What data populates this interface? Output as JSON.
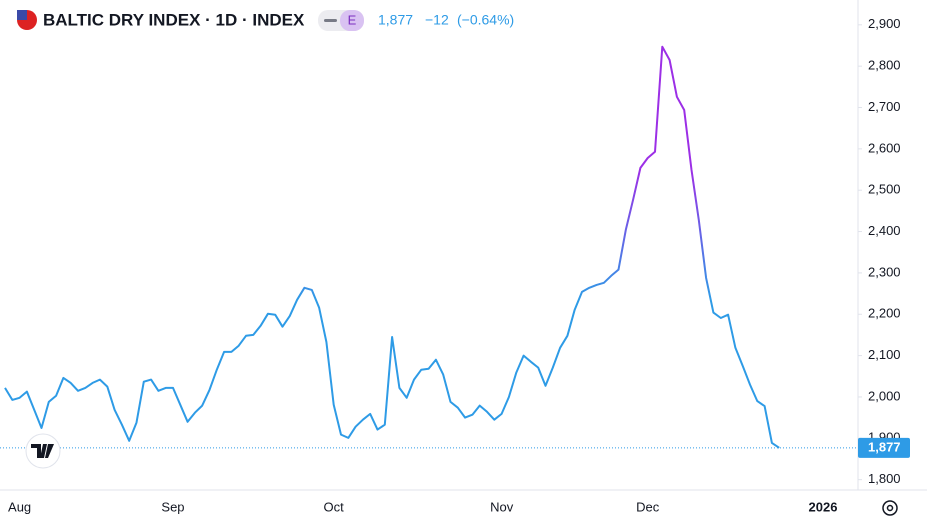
{
  "chart_data": {
    "type": "line",
    "title": "BALTIC DRY INDEX · 1D · INDEX",
    "badge": "E",
    "last_price": "1,877",
    "change": "−12",
    "change_percent": "(−0.64%)",
    "categories": [
      null,
      null,
      "Aug",
      null,
      null,
      null,
      null,
      null,
      null,
      null,
      null,
      null,
      null,
      null,
      null,
      null,
      null,
      null,
      null,
      null,
      null,
      null,
      null,
      "Sep",
      null,
      null,
      null,
      null,
      null,
      null,
      null,
      null,
      null,
      null,
      null,
      null,
      null,
      null,
      null,
      null,
      null,
      null,
      null,
      null,
      null,
      "Oct",
      null,
      null,
      null,
      null,
      null,
      null,
      null,
      null,
      null,
      null,
      null,
      null,
      null,
      null,
      null,
      null,
      null,
      null,
      null,
      null,
      null,
      null,
      "Nov",
      null,
      null,
      null,
      null,
      null,
      null,
      null,
      null,
      null,
      null,
      null,
      null,
      null,
      null,
      null,
      null,
      null,
      null,
      null,
      "Dec",
      null,
      null,
      null,
      null,
      null,
      null,
      null,
      null,
      null,
      null,
      null,
      null,
      null,
      null,
      null,
      null,
      null,
      null,
      null,
      null,
      null,
      null,
      null,
      "2026"
    ],
    "values": [
      2022,
      1993,
      1998,
      2013,
      1969,
      1925,
      1988,
      2003,
      2046,
      2034,
      2015,
      2022,
      2034,
      2042,
      2025,
      1969,
      1933,
      1894,
      1938,
      2037,
      2042,
      2015,
      2022,
      2022,
      1981,
      1940,
      1962,
      1979,
      2017,
      2066,
      2109,
      2109,
      2124,
      2148,
      2150,
      2172,
      2201,
      2199,
      2170,
      2196,
      2235,
      2264,
      2259,
      2216,
      2133,
      1981,
      1909,
      1901,
      1928,
      1945,
      1959,
      1921,
      1933,
      2145,
      2022,
      1998,
      2042,
      2066,
      2068,
      2090,
      2054,
      1988,
      1974,
      1950,
      1957,
      1979,
      1964,
      1945,
      1959,
      2000,
      2059,
      2100,
      2085,
      2071,
      2027,
      2071,
      2119,
      2148,
      2211,
      2254,
      2264,
      2271,
      2276,
      2293,
      2308,
      2404,
      2477,
      2554,
      2578,
      2593,
      2847,
      2815,
      2726,
      2694,
      2549,
      2428,
      2288,
      2204,
      2191,
      2199,
      2119,
      2075,
      2030,
      1990,
      1978,
      1889,
      1877,
      null,
      null,
      null,
      null,
      null,
      null
    ],
    "color": "#2e9be6",
    "high_color": "#9c2fe6",
    "ylim": [
      1775,
      2960
    ],
    "yticks": [
      {
        "value": 1800,
        "label": "1,800"
      },
      {
        "value": 1900,
        "label": "1,900"
      },
      {
        "value": 2000,
        "label": "2,000"
      },
      {
        "value": 2100,
        "label": "2,100"
      },
      {
        "value": 2200,
        "label": "2,200"
      },
      {
        "value": 2300,
        "label": "2,300"
      },
      {
        "value": 2400,
        "label": "2,400"
      },
      {
        "value": 2500,
        "label": "2,500"
      },
      {
        "value": 2600,
        "label": "2,600"
      },
      {
        "value": 2700,
        "label": "2,700"
      },
      {
        "value": 2800,
        "label": "2,800"
      },
      {
        "value": 2900,
        "label": "2,900"
      }
    ],
    "grid": false
  }
}
